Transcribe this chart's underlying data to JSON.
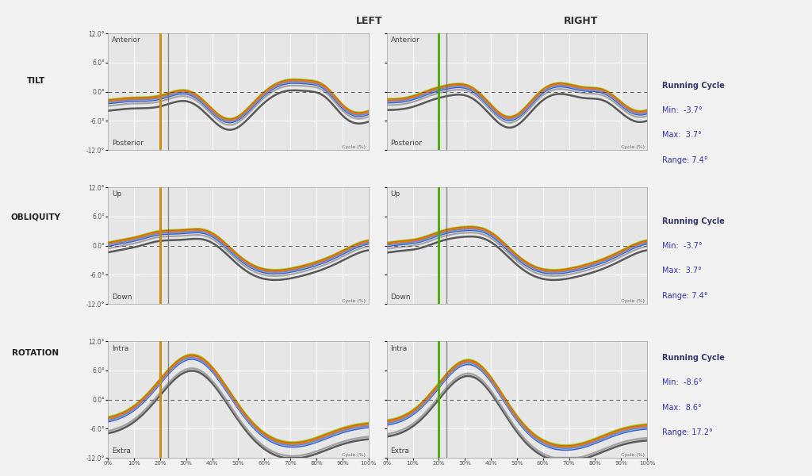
{
  "title_left": "LEFT",
  "title_right": "RIGHT",
  "row_labels": [
    "TILT",
    "OBLIQUITY",
    "ROTATION"
  ],
  "top_labels_left": [
    "Anterior",
    "Up",
    "Intra"
  ],
  "bottom_labels_left": [
    "Posterior",
    "Down",
    "Extra"
  ],
  "top_labels_right": [
    "Anterior",
    "Up",
    "Intra"
  ],
  "bottom_labels_right": [
    "Posterior",
    "Down",
    "Extra"
  ],
  "cycle_label": "Cycle (%)",
  "x_ticks": [
    0,
    10,
    20,
    30,
    40,
    50,
    60,
    70,
    80,
    90,
    100
  ],
  "x_tick_labels": [
    "0%",
    "10%",
    "20%",
    "30%",
    "40%",
    "50%",
    "60%",
    "70%",
    "80%",
    "90%",
    "100%"
  ],
  "ylim": [
    -12,
    12
  ],
  "y_ticks": [
    -12,
    -6,
    0,
    6,
    12
  ],
  "y_tick_labels": [
    "-12.0°",
    "-6.0°",
    "0.0°",
    "6.0°",
    "12.0°"
  ],
  "vline_left_x": 20,
  "vline_right_x": 20,
  "vline_left_color": "#CC8800",
  "vline_right_color": "#44AA00",
  "bg_color": "#E6E6E6",
  "grid_color": "#FFFFFF",
  "fig_bg": "#F2F2F2",
  "stats": [
    {
      "label": "Running Cycle",
      "min": "-3.7°",
      "max": "3.7°",
      "range": "7.4°"
    },
    {
      "label": "Running Cycle",
      "min": "-3.7°",
      "max": "3.7°",
      "range": "7.4°"
    },
    {
      "label": "Running Cycle",
      "min": "-8.6°",
      "max": "8.6°",
      "range": "17.2°"
    }
  ],
  "lc_orange": "#E07820",
  "lc_dark_orange": "#CC5500",
  "lc_yg": "#99CC00",
  "lc_blue": "#4488DD",
  "lc_light_blue": "#88AAEE",
  "lc_dark_blue": "#2244BB",
  "lc_gray": "#999999",
  "lc_dark_gray": "#444444"
}
